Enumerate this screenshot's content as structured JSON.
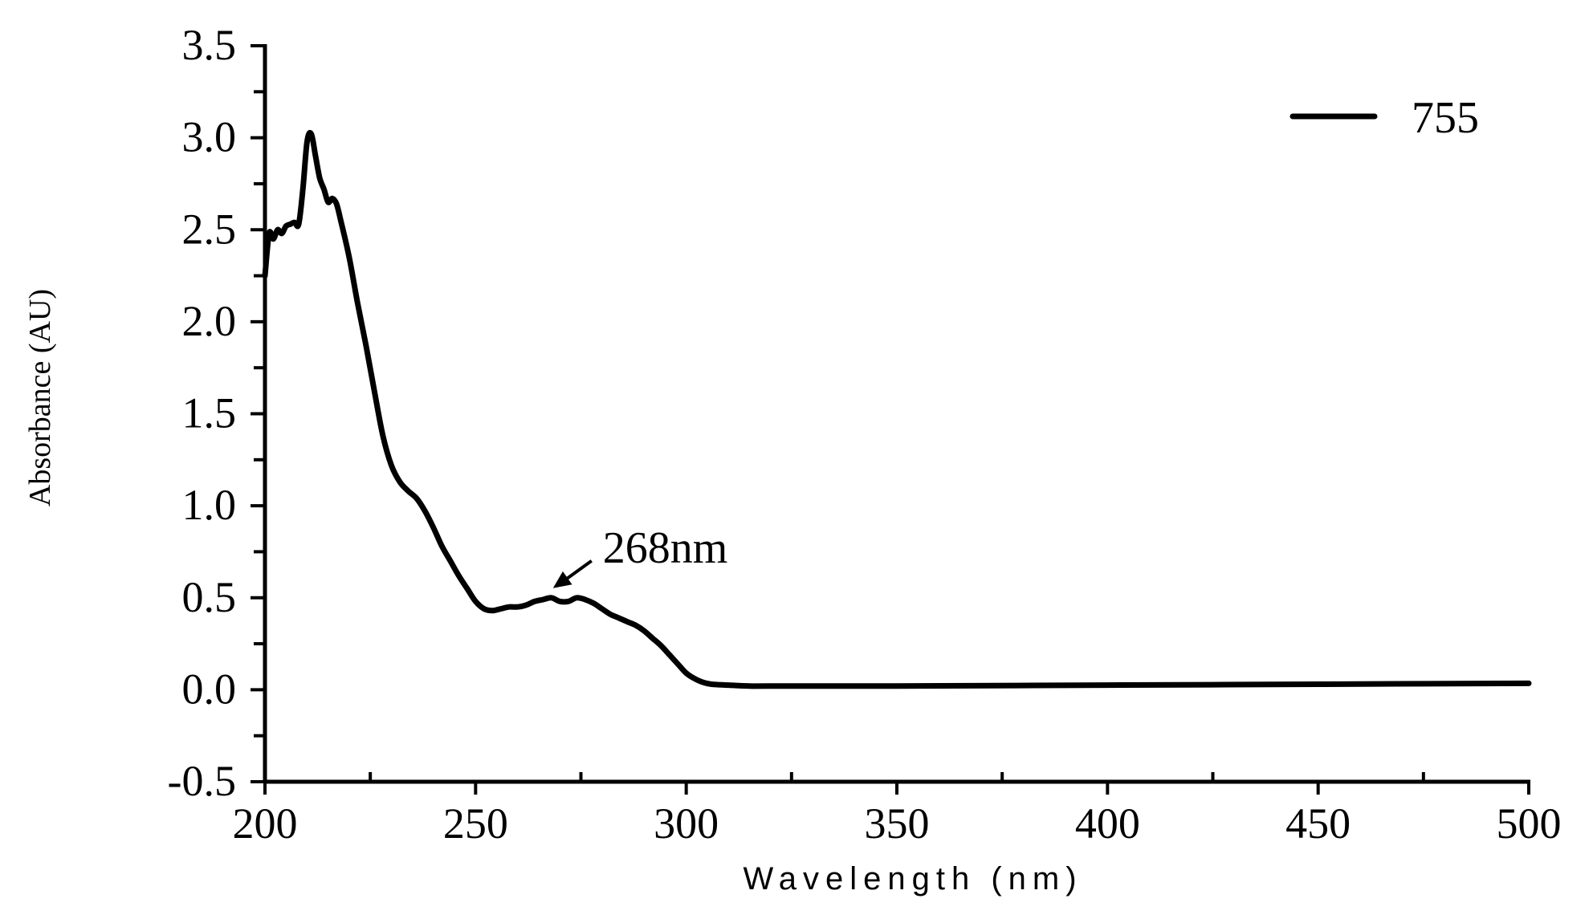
{
  "chart_data": {
    "type": "line",
    "xlabel": "Wavelength (nm)",
    "ylabel": "Absorbance (AU)",
    "xlim": [
      200,
      500
    ],
    "ylim": [
      -0.5,
      3.5
    ],
    "xticks": [
      200,
      250,
      300,
      350,
      400,
      450,
      500
    ],
    "xtick_labels": [
      "200",
      "250",
      "300",
      "350",
      "400",
      "450",
      "500"
    ],
    "yticks": [
      -0.5,
      0.0,
      0.5,
      1.0,
      1.5,
      2.0,
      2.5,
      3.0,
      3.5
    ],
    "ytick_labels": [
      "-0.5",
      "0.0",
      "0.5",
      "1.0",
      "1.5",
      "2.0",
      "2.5",
      "3.0",
      "3.5"
    ],
    "grid": false,
    "legend": {
      "position": "top-right",
      "entries": [
        "755"
      ]
    },
    "series": [
      {
        "name": "755",
        "color": "#000000",
        "x": [
          200,
          201,
          202,
          203,
          204,
          205,
          206,
          207,
          208,
          209,
          210,
          211,
          212,
          213,
          214,
          215,
          216,
          217,
          218,
          220,
          222,
          224,
          226,
          228,
          230,
          232,
          234,
          236,
          238,
          240,
          242,
          244,
          246,
          248,
          250,
          252,
          254,
          256,
          258,
          260,
          262,
          264,
          266,
          268,
          270,
          272,
          274,
          276,
          278,
          280,
          282,
          284,
          286,
          288,
          290,
          292,
          294,
          296,
          298,
          300,
          302,
          304,
          306,
          310,
          315,
          320,
          350,
          400,
          450,
          500
        ],
        "y": [
          2.25,
          2.48,
          2.45,
          2.5,
          2.48,
          2.52,
          2.53,
          2.54,
          2.53,
          2.72,
          2.98,
          3.02,
          2.9,
          2.78,
          2.72,
          2.65,
          2.67,
          2.64,
          2.55,
          2.35,
          2.1,
          1.87,
          1.62,
          1.38,
          1.22,
          1.13,
          1.08,
          1.04,
          0.97,
          0.88,
          0.78,
          0.7,
          0.62,
          0.55,
          0.48,
          0.44,
          0.43,
          0.44,
          0.45,
          0.45,
          0.46,
          0.48,
          0.49,
          0.5,
          0.48,
          0.48,
          0.5,
          0.49,
          0.47,
          0.44,
          0.41,
          0.39,
          0.37,
          0.35,
          0.32,
          0.28,
          0.24,
          0.19,
          0.14,
          0.09,
          0.06,
          0.04,
          0.03,
          0.025,
          0.02,
          0.02,
          0.02,
          0.025,
          0.03,
          0.035
        ]
      }
    ],
    "annotations": [
      {
        "text": "268nm",
        "x": 268,
        "y": 0.5
      }
    ]
  }
}
